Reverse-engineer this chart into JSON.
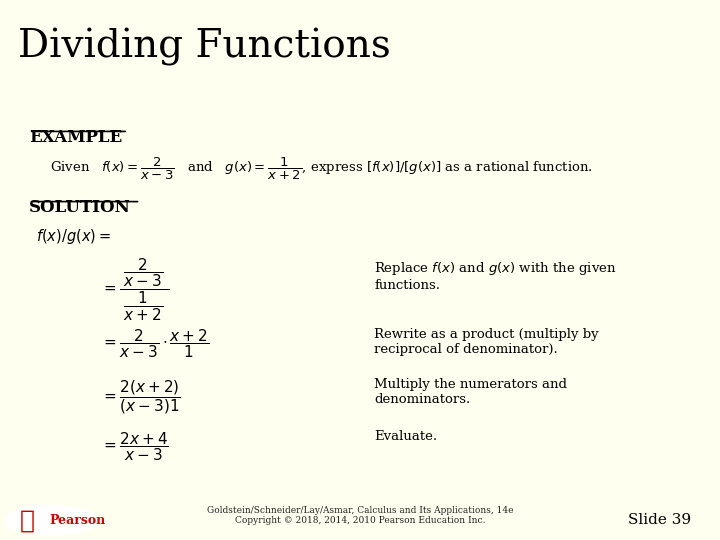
{
  "title": "Dividing Functions",
  "title_bg": "#f5f5dc",
  "title_color": "#000000",
  "title_fontsize": 28,
  "dark_red_bar_color": "#8B0000",
  "slide_bg": "#fffff0",
  "example_label": "EXAMPLE",
  "solution_label": "SOLUTION",
  "footer_left": "Goldstein/Schneider/Lay/Asmar, Calculus and Its Applications, 14e\nCopyright © 2018, 2014, 2010 Pearson Education Inc.",
  "footer_slide": "Slide 39",
  "pearson_color": "#cc0000",
  "footer_bg": "#b0b0b0"
}
